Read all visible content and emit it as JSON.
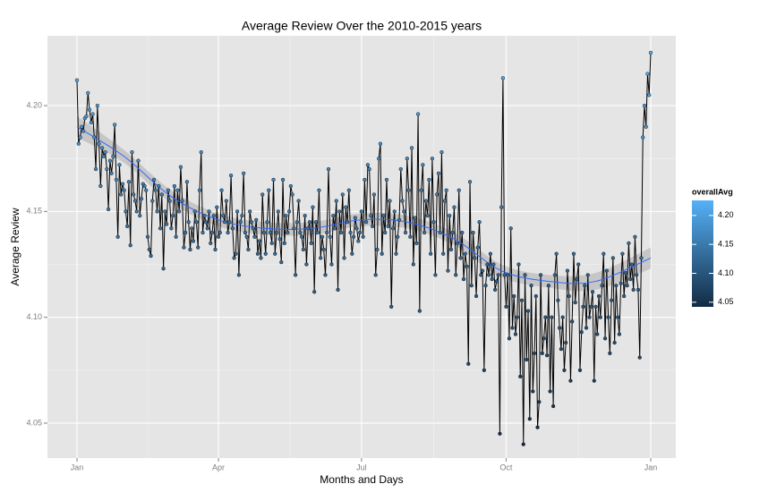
{
  "chart_data": {
    "type": "line",
    "title": "Average Review Over the 2010-2015 years",
    "x_label": "Months and Days",
    "y_label": "Average Review",
    "line_color": "#000000",
    "grid": true,
    "categories": [
      "Jan",
      null,
      null,
      null,
      null,
      null,
      null,
      null,
      null,
      null,
      null,
      null,
      null,
      null,
      null,
      null,
      null,
      null,
      null,
      null,
      null,
      null,
      null,
      null,
      null,
      null,
      null,
      null,
      null,
      null,
      null,
      null,
      null,
      null,
      null,
      null,
      null,
      null,
      null,
      null,
      null,
      null,
      null,
      null,
      null,
      null,
      null,
      null,
      null,
      null,
      null,
      null,
      null,
      null,
      null,
      null,
      null,
      null,
      null,
      null,
      null,
      null,
      null,
      null,
      null,
      null,
      null,
      null,
      null,
      null,
      null,
      null,
      null,
      null,
      null,
      null,
      null,
      null,
      null,
      null,
      null,
      null,
      null,
      null,
      null,
      null,
      null,
      null,
      null,
      null,
      "Apr",
      null,
      null,
      null,
      null,
      null,
      null,
      null,
      null,
      null,
      null,
      null,
      null,
      null,
      null,
      null,
      null,
      null,
      null,
      null,
      null,
      null,
      null,
      null,
      null,
      null,
      null,
      null,
      null,
      null,
      null,
      null,
      null,
      null,
      null,
      null,
      null,
      null,
      null,
      null,
      null,
      null,
      null,
      null,
      null,
      null,
      null,
      null,
      null,
      null,
      null,
      null,
      null,
      null,
      null,
      null,
      null,
      null,
      null,
      null,
      null,
      null,
      null,
      null,
      null,
      null,
      null,
      null,
      null,
      null,
      null,
      null,
      null,
      null,
      null,
      null,
      null,
      null,
      null,
      null,
      null,
      null,
      null,
      null,
      null,
      null,
      null,
      null,
      null,
      null,
      null,
      "Jul",
      null,
      null,
      null,
      null,
      null,
      null,
      null,
      null,
      null,
      null,
      null,
      null,
      null,
      null,
      null,
      null,
      null,
      null,
      null,
      null,
      null,
      null,
      null,
      null,
      null,
      null,
      null,
      null,
      null,
      null,
      null,
      null,
      null,
      null,
      null,
      null,
      null,
      null,
      null,
      null,
      null,
      null,
      null,
      null,
      null,
      null,
      null,
      null,
      null,
      null,
      null,
      null,
      null,
      null,
      null,
      null,
      null,
      null,
      null,
      null,
      null,
      null,
      null,
      null,
      null,
      null,
      null,
      null,
      null,
      null,
      null,
      null,
      null,
      null,
      null,
      null,
      null,
      null,
      null,
      null,
      null,
      null,
      null,
      null,
      null,
      null,
      null,
      null,
      null,
      null,
      null,
      "Oct",
      null,
      null,
      null,
      null,
      null,
      null,
      null,
      null,
      null,
      null,
      null,
      null,
      null,
      null,
      null,
      null,
      null,
      null,
      null,
      null,
      null,
      null,
      null,
      null,
      null,
      null,
      null,
      null,
      null,
      null,
      null,
      null,
      null,
      null,
      null,
      null,
      null,
      null,
      null,
      null,
      null,
      null,
      null,
      null,
      null,
      null,
      null,
      null,
      null,
      null,
      null,
      null,
      null,
      null,
      null,
      null,
      null,
      null,
      null,
      null,
      null,
      null,
      null,
      null,
      null,
      null,
      null,
      null,
      null,
      null,
      null,
      null,
      null,
      null,
      null,
      null,
      null,
      null,
      null,
      null,
      null,
      null,
      null,
      null,
      null,
      null,
      null,
      null,
      null,
      null,
      null,
      "Jan"
    ],
    "values": [
      4.212,
      4.182,
      4.185,
      4.19,
      4.188,
      4.194,
      4.195,
      4.206,
      4.198,
      4.192,
      4.196,
      4.185,
      4.17,
      4.2,
      4.182,
      4.162,
      4.18,
      4.176,
      4.178,
      4.17,
      4.151,
      4.174,
      4.168,
      4.176,
      4.191,
      4.165,
      4.138,
      4.172,
      4.158,
      4.163,
      4.16,
      4.15,
      4.143,
      4.164,
      4.134,
      4.178,
      4.158,
      4.155,
      4.15,
      4.174,
      4.148,
      4.156,
      4.163,
      4.162,
      4.16,
      4.138,
      4.132,
      4.129,
      4.155,
      4.165,
      4.16,
      4.15,
      4.162,
      4.142,
      4.158,
      4.123,
      4.15,
      4.144,
      4.16,
      4.155,
      4.142,
      4.148,
      4.162,
      4.138,
      4.16,
      4.15,
      4.171,
      4.155,
      4.133,
      4.14,
      4.164,
      4.145,
      4.132,
      4.142,
      4.136,
      4.15,
      4.145,
      4.133,
      4.16,
      4.178,
      4.14,
      4.148,
      4.145,
      4.142,
      4.15,
      4.135,
      4.14,
      4.148,
      4.132,
      4.152,
      4.138,
      4.14,
      4.16,
      4.148,
      4.145,
      4.155,
      4.14,
      4.145,
      4.167,
      4.142,
      4.128,
      4.13,
      4.15,
      4.12,
      4.145,
      4.148,
      4.168,
      4.14,
      4.138,
      4.132,
      4.15,
      4.145,
      4.142,
      4.138,
      4.146,
      4.13,
      4.136,
      4.128,
      4.158,
      4.14,
      4.13,
      4.145,
      4.16,
      4.14,
      4.135,
      4.165,
      4.13,
      4.14,
      4.15,
      4.137,
      4.126,
      4.165,
      4.135,
      4.148,
      4.14,
      4.15,
      4.162,
      4.158,
      4.142,
      4.12,
      4.145,
      4.155,
      4.14,
      4.138,
      4.132,
      4.148,
      4.125,
      4.142,
      4.145,
      4.135,
      4.152,
      4.112,
      4.145,
      4.14,
      4.16,
      4.128,
      4.138,
      4.132,
      4.12,
      4.14,
      4.17,
      4.138,
      4.125,
      4.148,
      4.142,
      4.155,
      4.113,
      4.15,
      4.14,
      4.158,
      4.128,
      4.152,
      4.145,
      4.16,
      4.14,
      4.13,
      4.138,
      4.147,
      4.142,
      4.136,
      4.14,
      4.15,
      4.138,
      4.165,
      4.145,
      4.172,
      4.17,
      4.148,
      4.143,
      4.158,
      4.12,
      4.132,
      4.175,
      4.182,
      4.13,
      4.148,
      4.14,
      4.165,
      4.143,
      4.155,
      4.105,
      4.142,
      4.15,
      4.13,
      4.138,
      4.146,
      4.17,
      4.155,
      4.15,
      4.14,
      4.175,
      4.16,
      4.138,
      4.18,
      4.125,
      4.147,
      4.135,
      4.196,
      4.103,
      4.16,
      4.172,
      4.14,
      4.155,
      4.148,
      4.165,
      4.13,
      4.175,
      4.145,
      4.12,
      4.158,
      4.168,
      4.14,
      4.178,
      4.13,
      4.155,
      4.16,
      4.122,
      4.148,
      4.132,
      4.14,
      4.152,
      4.12,
      4.135,
      4.16,
      4.128,
      4.14,
      4.118,
      4.13,
      4.124,
      4.078,
      4.164,
      4.115,
      4.14,
      4.128,
      4.11,
      4.133,
      4.145,
      4.12,
      4.122,
      4.075,
      4.115,
      4.125,
      4.12,
      4.13,
      4.118,
      4.125,
      4.113,
      4.117,
      4.12,
      4.045,
      4.152,
      4.213,
      4.12,
      4.105,
      4.12,
      4.09,
      4.142,
      4.095,
      4.11,
      4.092,
      4.1,
      4.125,
      4.072,
      4.108,
      4.04,
      4.12,
      4.08,
      4.103,
      4.052,
      4.115,
      4.065,
      4.083,
      4.11,
      4.048,
      4.06,
      4.12,
      4.083,
      4.09,
      4.1,
      4.082,
      4.115,
      4.065,
      4.1,
      4.058,
      4.12,
      4.13,
      4.108,
      4.095,
      4.085,
      4.1,
      4.075,
      4.088,
      4.122,
      4.11,
      4.07,
      4.098,
      4.13,
      4.107,
      4.118,
      4.125,
      4.075,
      4.093,
      4.105,
      4.115,
      4.095,
      4.12,
      4.1,
      4.105,
      4.112,
      4.07,
      4.105,
      4.092,
      4.11,
      4.1,
      4.115,
      4.13,
      4.09,
      4.122,
      4.1,
      4.083,
      4.108,
      4.128,
      4.088,
      4.115,
      4.1,
      4.092,
      4.116,
      4.13,
      4.11,
      4.121,
      4.115,
      4.135,
      4.118,
      4.125,
      4.113,
      4.138,
      4.12,
      4.113,
      4.081,
      4.128,
      4.185,
      4.2,
      4.19,
      4.215,
      4.205,
      4.225
    ],
    "smooth": {
      "color": "#3366FF",
      "band_color": "#999999",
      "at": [
        0,
        30,
        60,
        90,
        120,
        150,
        180,
        210,
        240,
        270,
        300,
        330,
        365
      ],
      "values": [
        4.19,
        4.176,
        4.157,
        4.146,
        4.142,
        4.142,
        4.146,
        4.145,
        4.137,
        4.122,
        4.117,
        4.117,
        4.128
      ],
      "ci": [
        0.005,
        0.003,
        0.003,
        0.003,
        0.003,
        0.003,
        0.003,
        0.003,
        0.003,
        0.003,
        0.003,
        0.004,
        0.005
      ]
    },
    "ylim": [
      4.0335,
      4.233
    ],
    "yticks": [
      4.05,
      {
        "value": 4.1,
        "label": "4.10"
      },
      4.15,
      {
        "value": 4.2,
        "label": "4.20"
      }
    ],
    "legend": {
      "title": "overallAvg",
      "low_color": "#132B43",
      "high_color": "#56B1F7",
      "range": [
        4.042,
        4.226
      ],
      "ticks": [
        4.05,
        {
          "value": 4.1,
          "label": "4.10"
        },
        4.15,
        {
          "value": 4.2,
          "label": "4.20"
        }
      ]
    }
  }
}
